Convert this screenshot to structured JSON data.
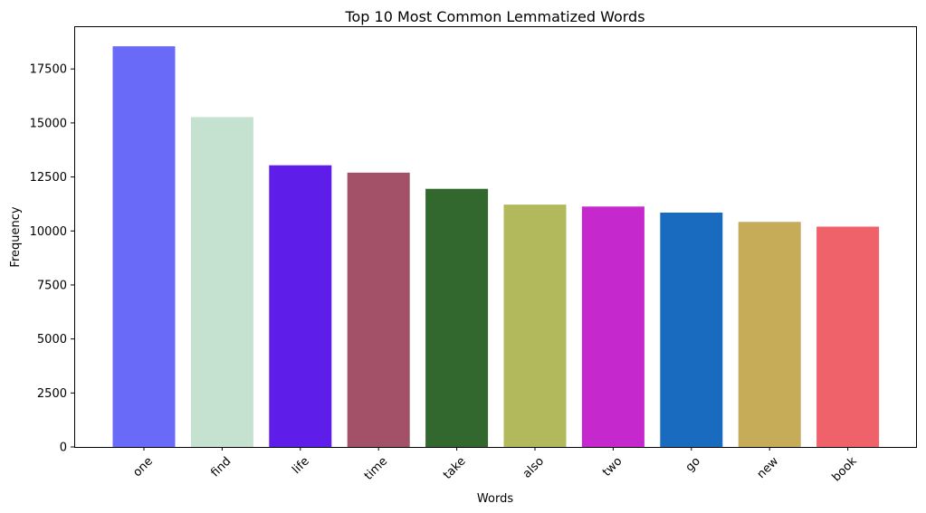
{
  "chart_data": {
    "type": "bar",
    "title": "Top 10 Most Common Lemmatized Words",
    "xlabel": "Words",
    "ylabel": "Frequency",
    "categories": [
      "one",
      "find",
      "life",
      "time",
      "take",
      "also",
      "two",
      "go",
      "new",
      "book"
    ],
    "values": [
      18550,
      15270,
      13040,
      12700,
      11950,
      11220,
      11130,
      10850,
      10420,
      10200
    ],
    "colors": [
      "#6a6af8",
      "#c5e2d1",
      "#5e1de8",
      "#a35168",
      "#32682d",
      "#b1b95c",
      "#c528cc",
      "#186bbe",
      "#c6ab59",
      "#ef626a"
    ],
    "ylim": [
      0,
      19478
    ],
    "yticks": [
      0,
      2500,
      5000,
      7500,
      10000,
      12500,
      15000,
      17500
    ],
    "ytick_labels": [
      "0",
      "2500",
      "5000",
      "7500",
      "10000",
      "12500",
      "15000",
      "17500"
    ],
    "grid": false,
    "xtick_rotation": 45
  }
}
